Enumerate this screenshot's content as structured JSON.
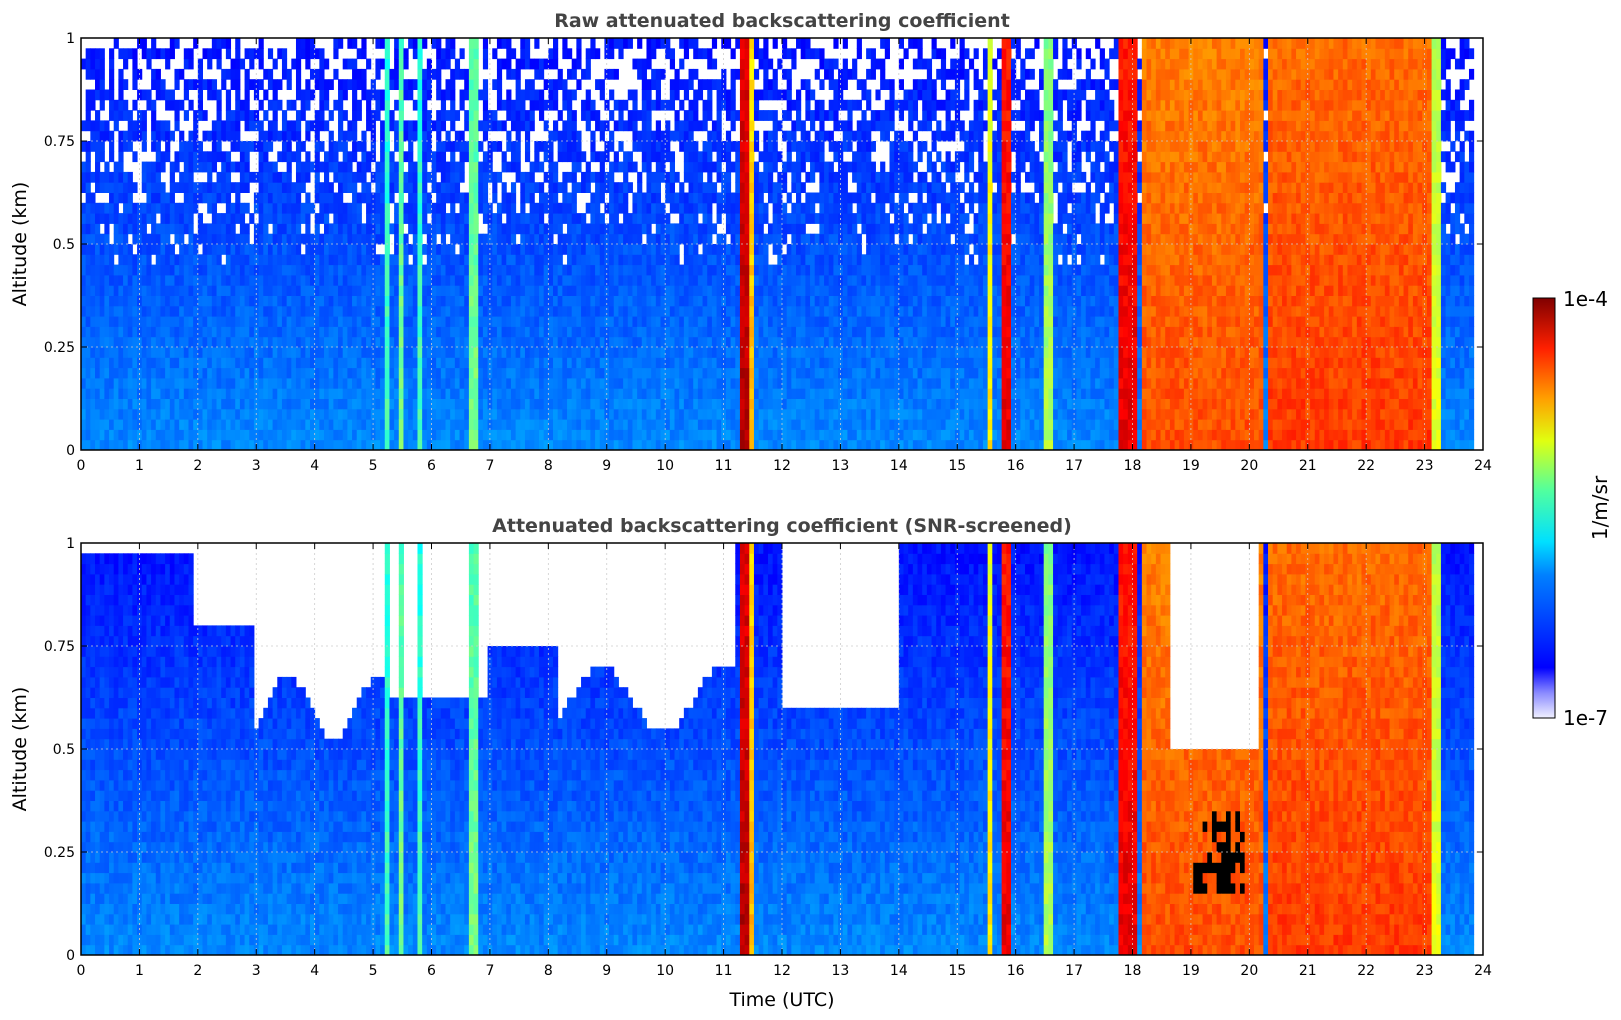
{
  "chart_data": [
    {
      "type": "heatmap",
      "title": "Raw attenuated backscattering coefficient",
      "xlabel": "",
      "ylabel": "Altitude (km)",
      "xlim": [
        0,
        24
      ],
      "ylim": [
        0,
        1
      ],
      "x_ticks": [
        "0",
        "1",
        "2",
        "3",
        "4",
        "5",
        "6",
        "7",
        "8",
        "9",
        "10",
        "11",
        "12",
        "13",
        "14",
        "15",
        "16",
        "17",
        "18",
        "19",
        "20",
        "21",
        "22",
        "23",
        "24"
      ],
      "y_ticks": [
        "0",
        "0.25",
        "0.5",
        "0.75",
        "1"
      ],
      "grid": true,
      "screened": false,
      "colormap": "jet",
      "features": [
        {
          "x_start": 0,
          "x_end": 23.8,
          "level": 0.25,
          "desc_noise_top": true
        },
        {
          "x_start": 5.2,
          "x_end": 5.3,
          "level": 0.45
        },
        {
          "x_start": 5.45,
          "x_end": 5.55,
          "level": 0.5
        },
        {
          "x_start": 5.75,
          "x_end": 5.85,
          "level": 0.45
        },
        {
          "x_start": 6.45,
          "x_end": 6.55,
          "level": 0.4
        },
        {
          "x_start": 6.65,
          "x_end": 6.78,
          "level": 0.5
        },
        {
          "x_start": 11.25,
          "x_end": 11.4,
          "level": 0.95
        },
        {
          "x_start": 11.4,
          "x_end": 11.55,
          "level": 0.7
        },
        {
          "x_start": 15.5,
          "x_end": 15.6,
          "level": 0.65
        },
        {
          "x_start": 15.75,
          "x_end": 15.88,
          "level": 0.9
        },
        {
          "x_start": 16.45,
          "x_end": 16.6,
          "level": 0.55
        },
        {
          "x_start": 17.8,
          "x_end": 18.1,
          "level": 0.9
        },
        {
          "x_start": 18.2,
          "x_end": 20.2,
          "level": 0.8
        },
        {
          "x_start": 20.3,
          "x_end": 23.1,
          "level": 0.82
        },
        {
          "x_start": 23.1,
          "x_end": 23.3,
          "level": 0.6
        }
      ]
    },
    {
      "type": "heatmap",
      "title": "Attenuated backscattering coefficient (SNR-screened)",
      "xlabel": "Time (UTC)",
      "ylabel": "Altitude (km)",
      "xlim": [
        0,
        24
      ],
      "ylim": [
        0,
        1
      ],
      "x_ticks": [
        "0",
        "1",
        "2",
        "3",
        "4",
        "5",
        "6",
        "7",
        "8",
        "9",
        "10",
        "11",
        "12",
        "13",
        "14",
        "15",
        "16",
        "17",
        "18",
        "19",
        "20",
        "21",
        "22",
        "23",
        "24"
      ],
      "y_ticks": [
        "0",
        "0.25",
        "0.5",
        "0.75",
        "1"
      ],
      "grid": true,
      "screened": true,
      "colormap": "jet"
    }
  ],
  "colorbar": {
    "label": "1/m/sr",
    "min_label": "1e-7",
    "max_label": "1e-4",
    "min": 1e-07,
    "max": 0.0001,
    "scale": "log"
  }
}
